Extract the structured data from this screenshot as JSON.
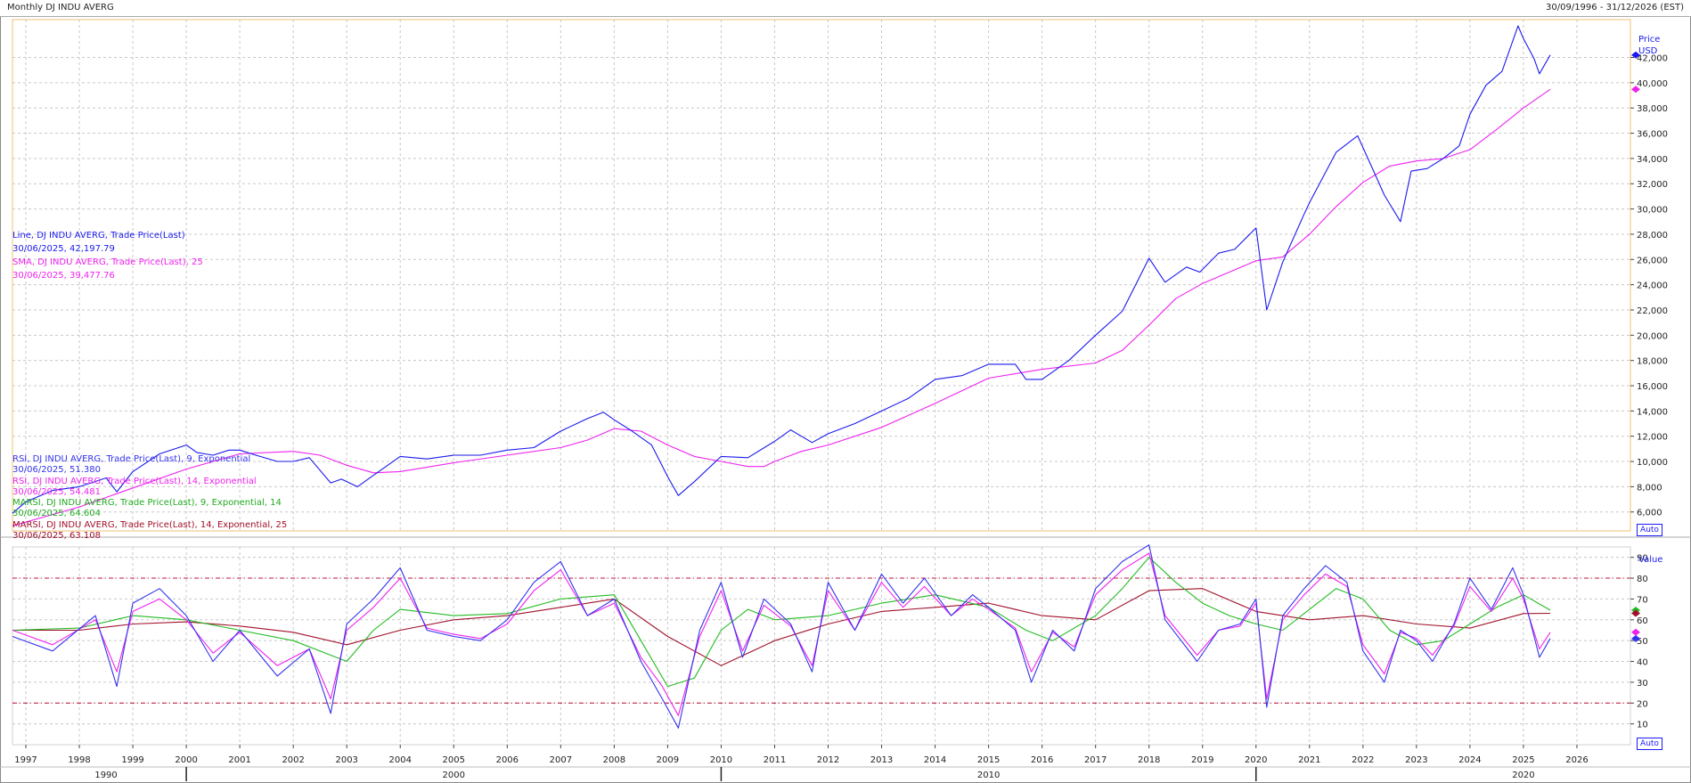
{
  "header": {
    "title": "Monthly DJ INDU AVERG",
    "date_range": "30/09/1996 - 31/12/2026 (EST)"
  },
  "buttons": {
    "auto_label": "Auto"
  },
  "price_panel": {
    "axis_title": "Price",
    "axis_unit": "USD",
    "legend": {
      "line_name": "Line, DJ INDU AVERG, Trade Price(Last)",
      "line_value": "30/06/2025, 42,197.79",
      "sma_name": "SMA, DJ INDU AVERG, Trade Price(Last),  25",
      "sma_value": "30/06/2025, 39,477.76"
    }
  },
  "rsi_panel": {
    "axis_title": "Value",
    "legend": {
      "rsi9_name": "RSI, DJ INDU AVERG, Trade Price(Last),  9, Exponential",
      "rsi9_value": "30/06/2025, 51.380",
      "rsi14_name": "RSI, DJ INDU AVERG, Trade Price(Last),  14, Exponential",
      "rsi14_value": "30/06/2025, 54.481",
      "marsi9_name": "MARSI, DJ INDU AVERG, Trade Price(Last),  9, Exponential, 14",
      "marsi9_value": "30/06/2025, 64.604",
      "marsi14_name": "MARSI, DJ INDU AVERG, Trade Price(Last),  14, Exponential, 25",
      "marsi14_value": "30/06/2025, 63.108"
    }
  },
  "colors": {
    "price_line": "#1a1aee",
    "sma_line": "#ee22ee",
    "rsi9": "#3333ee",
    "rsi14": "#ee22ee",
    "marsi9": "#22bb22",
    "marsi14": "#a0102a",
    "ref_lines": "#c0143c",
    "panel_border": "#f0c070",
    "grid": "#c8c8c8"
  },
  "chart_data": [
    {
      "type": "line",
      "title": "Monthly DJ INDU AVERG",
      "ylabel": "Price USD",
      "ylim": [
        4500,
        45000
      ],
      "y_ticks": [
        6000,
        8000,
        10000,
        12000,
        14000,
        16000,
        18000,
        20000,
        22000,
        24000,
        26000,
        28000,
        30000,
        32000,
        34000,
        36000,
        38000,
        40000,
        42000
      ],
      "y_tick_labels": [
        "6,000",
        "8,000",
        "10,000",
        "12,000",
        "14,000",
        "16,000",
        "18,000",
        "20,000",
        "22,000",
        "24,000",
        "26,000",
        "28,000",
        "30,000",
        "32,000",
        "34,000",
        "36,000",
        "38,000",
        "40,000",
        "42,000"
      ],
      "x_ticks": [
        1997,
        1998,
        1999,
        2000,
        2001,
        2002,
        2003,
        2004,
        2005,
        2006,
        2007,
        2008,
        2009,
        2010,
        2011,
        2012,
        2013,
        2014,
        2015,
        2016,
        2017,
        2018,
        2019,
        2020,
        2021,
        2022,
        2023,
        2024,
        2025,
        2026
      ],
      "x_tick_labels": [
        "1997",
        "1998",
        "1999",
        "2000",
        "2001",
        "2002",
        "2003",
        "2004",
        "2005",
        "2006",
        "2007",
        "2008",
        "2009",
        "2010",
        "2011",
        "2012",
        "2013",
        "2014",
        "2015",
        "2016",
        "2017",
        "2018",
        "2019",
        "2020",
        "2021",
        "2022",
        "2023",
        "2024",
        "2025",
        "2026"
      ],
      "decade_labels": [
        {
          "x": 1998.5,
          "label": "1990"
        },
        {
          "x": 2005.0,
          "label": "2000"
        },
        {
          "x": 2015.0,
          "label": "2010"
        },
        {
          "x": 2025.0,
          "label": "2020"
        }
      ],
      "decade_dividers": [
        2000,
        2010,
        2020
      ],
      "xlim": [
        1996.75,
        2027.0
      ],
      "series": [
        {
          "name": "Line, DJ INDU AVERG, Trade Price(Last)",
          "x": [
            1996.75,
            1997.0,
            1997.5,
            1998.0,
            1998.5,
            1998.7,
            1999.0,
            1999.5,
            2000.0,
            2000.2,
            2000.5,
            2000.8,
            2001.0,
            2001.3,
            2001.7,
            2002.0,
            2002.3,
            2002.7,
            2002.9,
            2003.2,
            2003.5,
            2004.0,
            2004.5,
            2005.0,
            2005.5,
            2006.0,
            2006.5,
            2007.0,
            2007.5,
            2007.8,
            2008.0,
            2008.3,
            2008.7,
            2009.0,
            2009.2,
            2009.5,
            2010.0,
            2010.5,
            2011.0,
            2011.3,
            2011.7,
            2012.0,
            2012.5,
            2013.0,
            2013.5,
            2014.0,
            2014.5,
            2015.0,
            2015.5,
            2015.7,
            2016.0,
            2016.5,
            2017.0,
            2017.5,
            2018.0,
            2018.3,
            2018.7,
            2018.95,
            2019.3,
            2019.6,
            2020.0,
            2020.2,
            2020.5,
            2020.9,
            2021.0,
            2021.5,
            2021.9,
            2022.2,
            2022.4,
            2022.7,
            2022.9,
            2023.2,
            2023.5,
            2023.8,
            2024.0,
            2024.3,
            2024.6,
            2024.9,
            2025.0,
            2025.2,
            2025.3,
            2025.5
          ],
          "values": [
            5900,
            6800,
            7700,
            8000,
            8700,
            7600,
            9200,
            10600,
            11300,
            10700,
            10500,
            10900,
            10900,
            10500,
            10000,
            10000,
            10300,
            8300,
            8600,
            8000,
            8900,
            10400,
            10200,
            10500,
            10500,
            10900,
            11100,
            12400,
            13400,
            13900,
            13300,
            12500,
            11300,
            8800,
            7300,
            8400,
            10400,
            10300,
            11600,
            12500,
            11500,
            12200,
            13000,
            14000,
            15000,
            16500,
            16800,
            17700,
            17700,
            16500,
            16500,
            18000,
            20000,
            21900,
            26100,
            24200,
            25400,
            25000,
            26500,
            26800,
            28500,
            22000,
            25800,
            29600,
            30500,
            34500,
            35800,
            33000,
            31100,
            29000,
            33000,
            33200,
            34000,
            35000,
            37500,
            39800,
            40900,
            44500,
            43500,
            41900,
            40700,
            42198
          ]
        },
        {
          "name": "SMA, DJ INDU AVERG, Trade Price(Last),  25",
          "x": [
            1996.75,
            1998.0,
            1999.0,
            2000.0,
            2001.0,
            2002.0,
            2002.5,
            2003.0,
            2003.5,
            2004.0,
            2005.0,
            2006.0,
            2007.0,
            2007.5,
            2008.0,
            2008.5,
            2009.0,
            2009.5,
            2010.0,
            2010.5,
            2010.8,
            2011.0,
            2011.5,
            2012.0,
            2013.0,
            2014.0,
            2015.0,
            2016.0,
            2017.0,
            2017.5,
            2018.0,
            2018.5,
            2019.0,
            2019.5,
            2020.0,
            2020.5,
            2021.0,
            2021.5,
            2022.0,
            2022.5,
            2023.0,
            2023.5,
            2024.0,
            2024.5,
            2025.0,
            2025.5
          ],
          "values": [
            4900,
            6400,
            7900,
            9400,
            10600,
            10800,
            10500,
            9700,
            9100,
            9200,
            9900,
            10500,
            11100,
            11700,
            12600,
            12400,
            11300,
            10400,
            10000,
            9600,
            9600,
            10000,
            10800,
            11300,
            12700,
            14600,
            16600,
            17300,
            17800,
            18800,
            20800,
            22900,
            24100,
            25000,
            25900,
            26200,
            28000,
            30200,
            32100,
            33400,
            33800,
            34000,
            34700,
            36300,
            38000,
            39478
          ]
        }
      ]
    },
    {
      "type": "line",
      "title": "",
      "ylabel": "Value",
      "ylim": [
        0,
        95
      ],
      "y_ticks": [
        10,
        20,
        30,
        40,
        50,
        60,
        70,
        80,
        90
      ],
      "y_tick_labels": [
        "10",
        "20",
        "30",
        "40",
        "50",
        "60",
        "70",
        "80",
        "90"
      ],
      "reference_lines": [
        20,
        80
      ],
      "xlim": [
        1996.75,
        2027.0
      ],
      "series": [
        {
          "name": "RSI, DJ INDU AVERG, Trade Price(Last),  9, Exponential",
          "x": [
            1996.75,
            1997.5,
            1998.3,
            1998.7,
            1999.0,
            1999.5,
            2000.0,
            2000.5,
            2001.0,
            2001.7,
            2002.3,
            2002.7,
            2003.0,
            2003.5,
            2004.0,
            2004.5,
            2005.0,
            2005.5,
            2006.0,
            2006.5,
            2007.0,
            2007.5,
            2008.0,
            2008.5,
            2008.9,
            2009.2,
            2009.6,
            2010.0,
            2010.4,
            2010.8,
            2011.3,
            2011.7,
            2012.0,
            2012.5,
            2013.0,
            2013.4,
            2013.8,
            2014.3,
            2014.7,
            2015.0,
            2015.5,
            2015.8,
            2016.2,
            2016.6,
            2017.0,
            2017.5,
            2018.0,
            2018.3,
            2018.9,
            2019.3,
            2019.7,
            2020.0,
            2020.2,
            2020.5,
            2020.9,
            2021.3,
            2021.7,
            2022.0,
            2022.4,
            2022.7,
            2023.0,
            2023.3,
            2023.7,
            2024.0,
            2024.4,
            2024.8,
            2025.0,
            2025.3,
            2025.5
          ],
          "values": [
            52,
            45,
            62,
            28,
            68,
            75,
            62,
            40,
            55,
            33,
            46,
            15,
            58,
            70,
            85,
            55,
            52,
            50,
            60,
            78,
            88,
            62,
            70,
            40,
            22,
            8,
            55,
            78,
            42,
            70,
            58,
            35,
            78,
            55,
            82,
            68,
            80,
            62,
            72,
            66,
            55,
            30,
            55,
            45,
            75,
            88,
            96,
            60,
            40,
            55,
            58,
            70,
            18,
            62,
            75,
            86,
            78,
            45,
            30,
            55,
            50,
            40,
            58,
            80,
            65,
            85,
            72,
            42,
            51
          ]
        },
        {
          "name": "RSI, DJ INDU AVERG, Trade Price(Last),  14, Exponential",
          "x": [
            1996.75,
            1997.5,
            1998.3,
            1998.7,
            1999.0,
            1999.5,
            2000.0,
            2000.5,
            2001.0,
            2001.7,
            2002.3,
            2002.7,
            2003.0,
            2003.5,
            2004.0,
            2004.5,
            2005.0,
            2005.5,
            2006.0,
            2006.5,
            2007.0,
            2007.5,
            2008.0,
            2008.5,
            2008.9,
            2009.2,
            2009.6,
            2010.0,
            2010.4,
            2010.8,
            2011.3,
            2011.7,
            2012.0,
            2012.5,
            2013.0,
            2013.4,
            2013.8,
            2014.3,
            2014.7,
            2015.0,
            2015.5,
            2015.8,
            2016.2,
            2016.6,
            2017.0,
            2017.5,
            2018.0,
            2018.3,
            2018.9,
            2019.3,
            2019.7,
            2020.0,
            2020.2,
            2020.5,
            2020.9,
            2021.3,
            2021.7,
            2022.0,
            2022.4,
            2022.7,
            2023.0,
            2023.3,
            2023.7,
            2024.0,
            2024.4,
            2024.8,
            2025.0,
            2025.3,
            2025.5
          ],
          "values": [
            55,
            48,
            60,
            35,
            64,
            70,
            60,
            44,
            54,
            38,
            46,
            22,
            55,
            66,
            80,
            56,
            53,
            51,
            58,
            74,
            84,
            62,
            68,
            42,
            28,
            14,
            52,
            74,
            45,
            67,
            57,
            38,
            74,
            55,
            78,
            66,
            76,
            62,
            70,
            65,
            56,
            35,
            54,
            47,
            72,
            84,
            92,
            62,
            43,
            55,
            57,
            68,
            22,
            60,
            72,
            82,
            76,
            48,
            34,
            54,
            51,
            43,
            57,
            76,
            64,
            80,
            70,
            46,
            54
          ]
        },
        {
          "name": "MARSI, DJ INDU AVERG, Trade Price(Last),  9, Exponential, 14",
          "x": [
            1996.75,
            1998.0,
            1999.0,
            2000.0,
            2001.0,
            2002.0,
            2003.0,
            2003.5,
            2004.0,
            2005.0,
            2006.0,
            2007.0,
            2008.0,
            2008.5,
            2009.0,
            2009.5,
            2010.0,
            2010.5,
            2011.0,
            2012.0,
            2013.0,
            2014.0,
            2015.0,
            2015.7,
            2016.2,
            2017.0,
            2017.5,
            2018.0,
            2018.5,
            2019.0,
            2019.5,
            2020.0,
            2020.5,
            2021.0,
            2021.5,
            2022.0,
            2022.5,
            2023.0,
            2023.5,
            2024.0,
            2024.5,
            2025.0,
            2025.5
          ],
          "values": [
            55,
            56,
            62,
            60,
            55,
            50,
            40,
            55,
            65,
            62,
            63,
            70,
            72,
            50,
            28,
            32,
            55,
            65,
            60,
            62,
            68,
            72,
            66,
            55,
            50,
            62,
            75,
            90,
            78,
            68,
            62,
            58,
            55,
            65,
            75,
            70,
            55,
            48,
            50,
            58,
            66,
            72,
            64.6
          ]
        },
        {
          "name": "MARSI, DJ INDU AVERG, Trade Price(Last),  14, Exponential, 25",
          "x": [
            1996.75,
            1998.0,
            1999.0,
            2000.0,
            2001.0,
            2002.0,
            2003.0,
            2004.0,
            2005.0,
            2006.0,
            2007.0,
            2008.0,
            2009.0,
            2010.0,
            2011.0,
            2012.0,
            2013.0,
            2014.0,
            2015.0,
            2016.0,
            2017.0,
            2018.0,
            2019.0,
            2020.0,
            2021.0,
            2022.0,
            2023.0,
            2024.0,
            2025.0,
            2025.5
          ],
          "values": [
            55,
            55,
            58,
            59,
            57,
            54,
            48,
            55,
            60,
            62,
            66,
            70,
            52,
            38,
            50,
            58,
            64,
            66,
            68,
            62,
            60,
            74,
            75,
            64,
            60,
            62,
            58,
            56,
            63,
            63.1
          ]
        }
      ]
    }
  ]
}
